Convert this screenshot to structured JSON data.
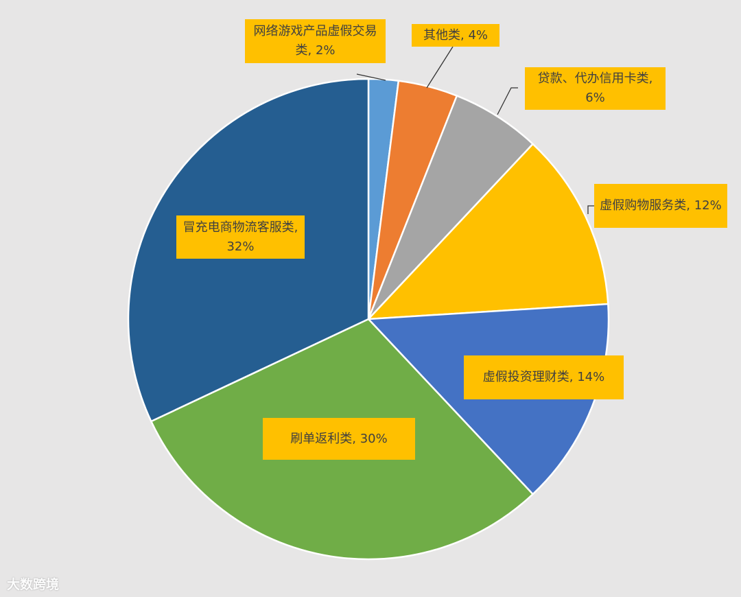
{
  "chart_data": {
    "type": "pie",
    "values": [
      2,
      4,
      6,
      12,
      14,
      30,
      32
    ],
    "value_labels": [
      "网络游戏产品虚假交易类, 2%",
      "其他类, 4%",
      "贷款、代办信用卡类, 6%",
      "虚假购物服务类, 12%",
      "虚假投资理财类, 14%",
      "刷单返利类, 30%",
      "冒充电商物流客服类, 32%"
    ],
    "colors": [
      "#5b9bd5",
      "#ed7d31",
      "#a5a5a5",
      "#ffc000",
      "#4472c4",
      "#70ad47",
      "#255e91"
    ]
  },
  "watermark": "大数跨境"
}
